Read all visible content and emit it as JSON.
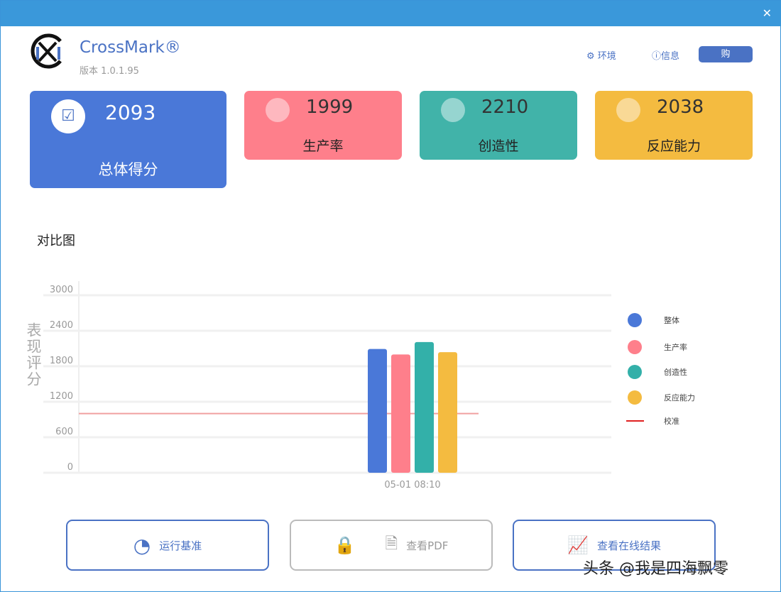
{
  "app": {
    "name": "CrossMark®",
    "version": "版本 1.0.1.95"
  },
  "header": {
    "env": "环境",
    "info": "信息",
    "buy": "购"
  },
  "cards": [
    {
      "label": "总体得分",
      "value": "2093",
      "color": "#4a78d8"
    },
    {
      "label": "生产率",
      "value": "1999",
      "color": "#fe7f8b"
    },
    {
      "label": "创造性",
      "value": "2210",
      "color": "#41b3a9"
    },
    {
      "label": "反应能力",
      "value": "2038",
      "color": "#f4bb40"
    }
  ],
  "section_title": "对比图",
  "chart_data": {
    "type": "bar",
    "ylabel": "表现评分",
    "ylim": [
      0,
      3000
    ],
    "yticks": [
      0,
      600,
      1200,
      1800,
      2400,
      3000
    ],
    "categories": [
      "05-01 08:10"
    ],
    "series": [
      {
        "name": "整体",
        "values": [
          2093
        ],
        "color": "#4a78d8"
      },
      {
        "name": "生产率",
        "values": [
          1999
        ],
        "color": "#fe7f8b"
      },
      {
        "name": "创造性",
        "values": [
          2210
        ],
        "color": "#33b0a9"
      },
      {
        "name": "反应能力",
        "values": [
          2038
        ],
        "color": "#f4bb40"
      }
    ],
    "reference": {
      "name": "校准",
      "value": 1000,
      "color": "#e02020"
    },
    "legend": "right",
    "grid": true
  },
  "buttons": {
    "run": "运行基准",
    "pdf": "查看PDF",
    "online": "查看在线结果"
  },
  "watermark": "头条 @我是四海飘零"
}
